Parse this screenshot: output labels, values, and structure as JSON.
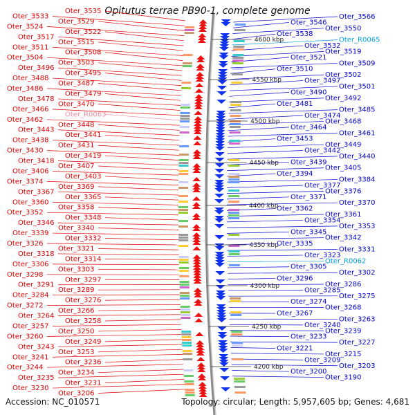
{
  "title": "Opitutus terrae PB90-1, complete genome",
  "footer": {
    "accession": "Accession: NC_010571",
    "summary": "Topology: circular; Length: 5,957,605 bp; Genes: 4,681"
  },
  "colors": {
    "left_label": "#dd0000",
    "right_label": "#0000cc",
    "rna_right": "#00a0e0",
    "rna_left": "#f08aa0",
    "backbone": "#888888",
    "tick": "#333333"
  },
  "ticks": [
    {
      "label": "4600 kbp"
    },
    {
      "label": "4550 kbp"
    },
    {
      "label": "4500 kbp"
    },
    {
      "label": "4450 kbp"
    },
    {
      "label": "4400 kbp"
    },
    {
      "label": "4350 kbp"
    },
    {
      "label": "4300 kbp"
    },
    {
      "label": "4250 kbp"
    },
    {
      "label": "4200 kbp"
    }
  ],
  "left_labels": [
    "Oter_3535",
    "Oter_3533",
    "Oter_3529",
    "Oter_3524",
    "Oter_3522",
    "Oter_3517",
    "Oter_3515",
    "Oter_3511",
    "Oter_3508",
    "Oter_3504",
    "Oter_3503",
    "Oter_3496",
    "Oter_3495",
    "Oter_3488",
    "Oter_3487",
    "Oter_3486",
    "Oter_3479",
    "Oter_3478",
    "Oter_3470",
    "Oter_3466",
    "Oter_R0063",
    "Oter_3462",
    "Oter_3448",
    "Oter_3443",
    "Oter_3441",
    "Oter_3438",
    "Oter_3431",
    "Oter_3430",
    "Oter_3419",
    "Oter_3418",
    "Oter_3407",
    "Oter_3406",
    "Oter_3403",
    "Oter_3374",
    "Oter_3369",
    "Oter_3367",
    "Oter_3365",
    "Oter_3360",
    "Oter_3358",
    "Oter_3352",
    "Oter_3348",
    "Oter_3346",
    "Oter_3340",
    "Oter_3339",
    "Oter_3332",
    "Oter_3326",
    "Oter_3321",
    "Oter_3318",
    "Oter_3314",
    "Oter_3306",
    "Oter_3303",
    "Oter_3298",
    "Oter_3297",
    "Oter_3291",
    "Oter_3289",
    "Oter_3284",
    "Oter_3276",
    "Oter_3272",
    "Oter_3266",
    "Oter_3264",
    "Oter_3258",
    "Oter_3257",
    "Oter_3250",
    "Oter_3260",
    "Oter_3249",
    "Oter_3243",
    "Oter_3253",
    "Oter_3241",
    "Oter_3236",
    "Oter_3244",
    "Oter_3234",
    "Oter_3235",
    "Oter_3231",
    "Oter_3230",
    "Oter_3206"
  ],
  "right_labels": [
    "Oter_3566",
    "Oter_3546",
    "Oter_3550",
    "Oter_3538",
    "Oter_R0065",
    "Oter_3532",
    "Oter_3519",
    "Oter_3521",
    "Oter_3509",
    "Oter_3510",
    "Oter_3502",
    "Oter_3497",
    "Oter_3501",
    "Oter_3490",
    "Oter_3492",
    "Oter_3481",
    "Oter_3485",
    "Oter_3474",
    "Oter_3468",
    "Oter_3464",
    "Oter_3461",
    "Oter_3453",
    "Oter_3449",
    "Oter_3442",
    "Oter_3440",
    "Oter_3439",
    "Oter_3405",
    "Oter_3394",
    "Oter_3384",
    "Oter_3377",
    "Oter_3376",
    "Oter_3371",
    "Oter_3370",
    "Oter_3362",
    "Oter_3361",
    "Oter_3354",
    "Oter_3353",
    "Oter_3345",
    "Oter_3342",
    "Oter_3335",
    "Oter_3331",
    "Oter_3323",
    "Oter_R0062",
    "Oter_3305",
    "Oter_3302",
    "Oter_3296",
    "Oter_3286",
    "Oter_3285",
    "Oter_3275",
    "Oter_3274",
    "Oter_3268",
    "Oter_3267",
    "Oter_3263",
    "Oter_3240",
    "Oter_3239",
    "Oter_3233",
    "Oter_3227",
    "Oter_3221",
    "Oter_3215",
    "Oter_3209",
    "Oter_3203",
    "Oter_3200",
    "Oter_3190"
  ]
}
